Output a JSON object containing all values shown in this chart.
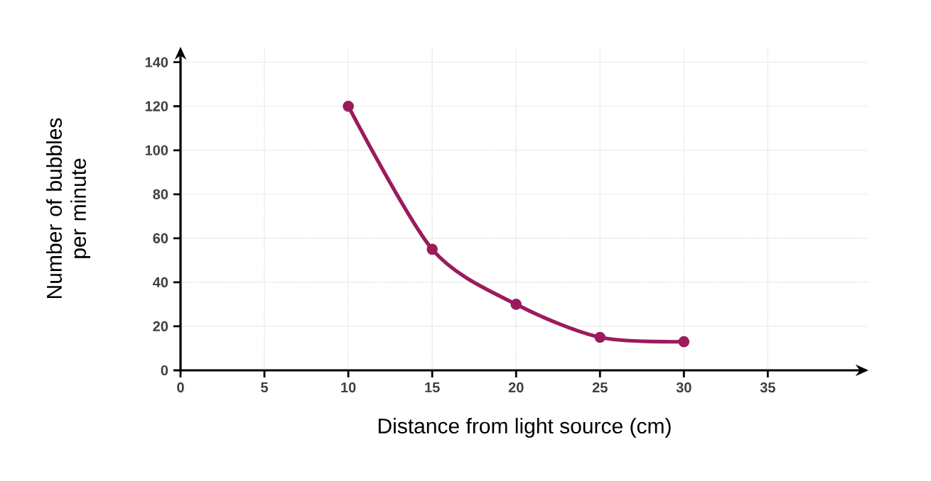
{
  "chart_data": {
    "type": "line",
    "xlabel": "Distance from light source (cm)",
    "ylabel": "Number of bubbles per minute",
    "x": [
      10,
      15,
      20,
      25,
      30
    ],
    "series": [
      {
        "color": "#9b1b5c",
        "values": [
          120,
          55,
          30,
          15,
          13
        ]
      }
    ],
    "xlim": [
      0,
      41
    ],
    "ylim": [
      0,
      147
    ],
    "xticks": [
      0,
      5,
      10,
      15,
      20,
      25,
      30,
      35
    ],
    "yticks": [
      0,
      20,
      40,
      60,
      80,
      100,
      120,
      140
    ],
    "grid": true,
    "marker": "circle",
    "line_style": "solid"
  }
}
